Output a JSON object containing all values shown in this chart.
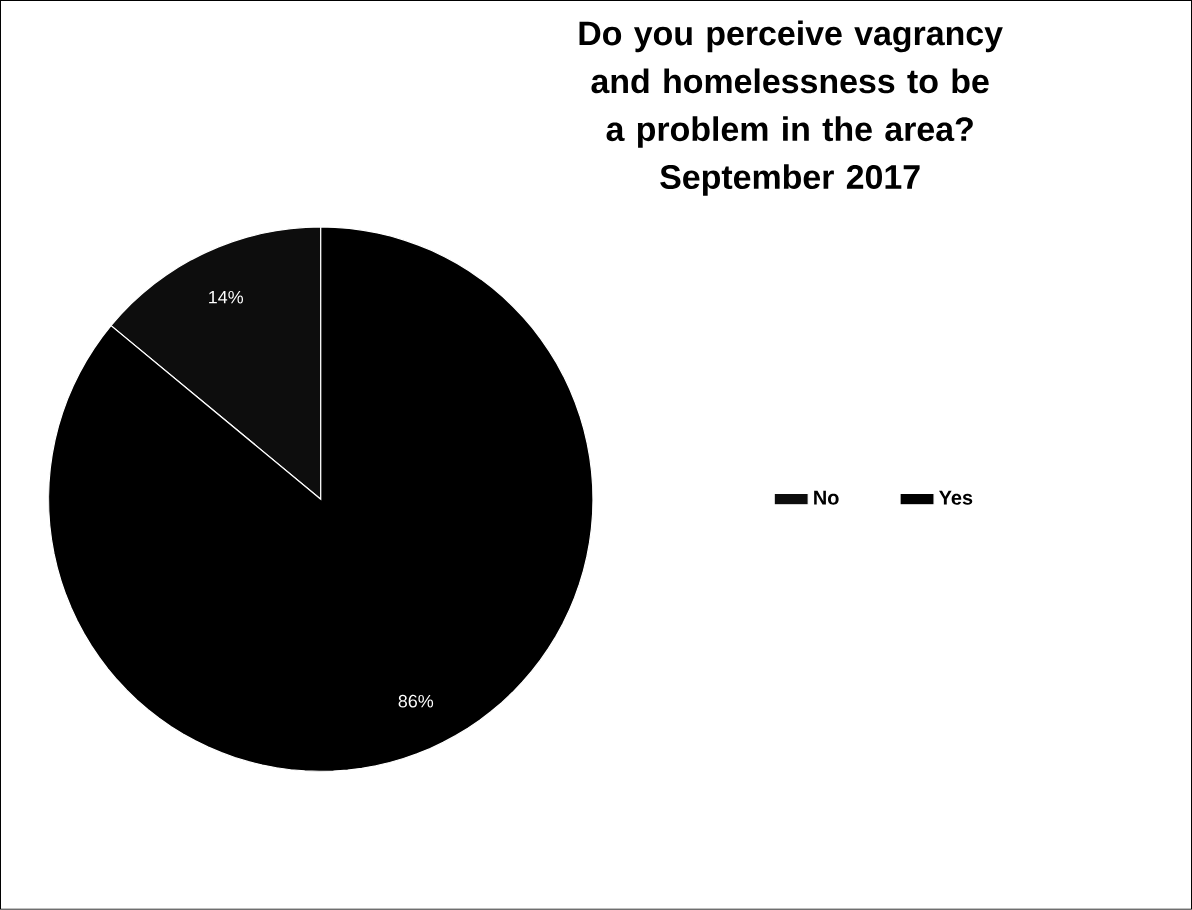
{
  "chart_data": {
    "type": "pie",
    "title": "Do you perceive vagrancy and homelessness to be a problem in the area?",
    "subtitle": "September 2017",
    "categories": [
      "No",
      "Yes"
    ],
    "values": [
      14,
      86
    ],
    "value_labels": [
      "14%",
      "86%"
    ],
    "colors": [
      "#0d0d0d",
      "#000000"
    ],
    "legend": "right"
  }
}
